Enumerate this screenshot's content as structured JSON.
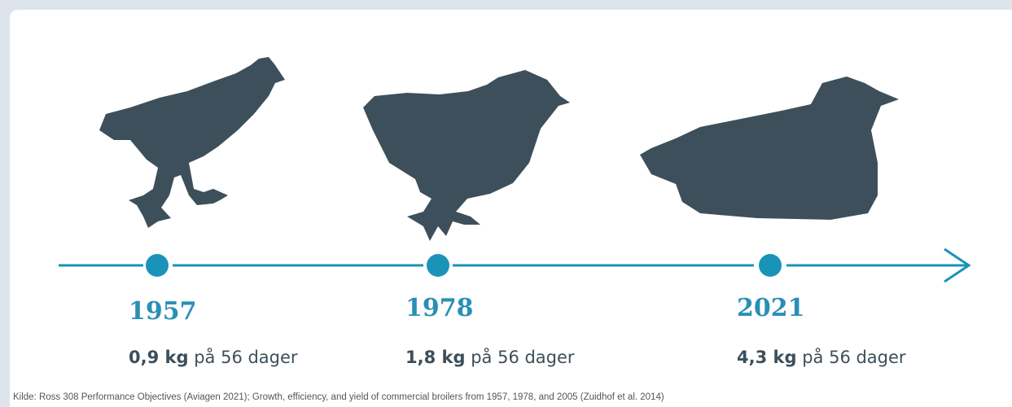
{
  "timeline": {
    "items": [
      {
        "year": "1957",
        "weight": "0,9 kg",
        "period": "på 56 dager"
      },
      {
        "year": "1978",
        "weight": "1,8 kg",
        "period": "på 56 dager"
      },
      {
        "year": "2021",
        "weight": "4,3 kg",
        "period": "på 56 dager"
      }
    ]
  },
  "source": "Kilde: Ross 308 Performance Objectives (Aviagen 2021); Growth, efficiency, and yield of commercial broilers from 1957, 1978, and 2005 (Zuidhof et al. 2014)"
}
